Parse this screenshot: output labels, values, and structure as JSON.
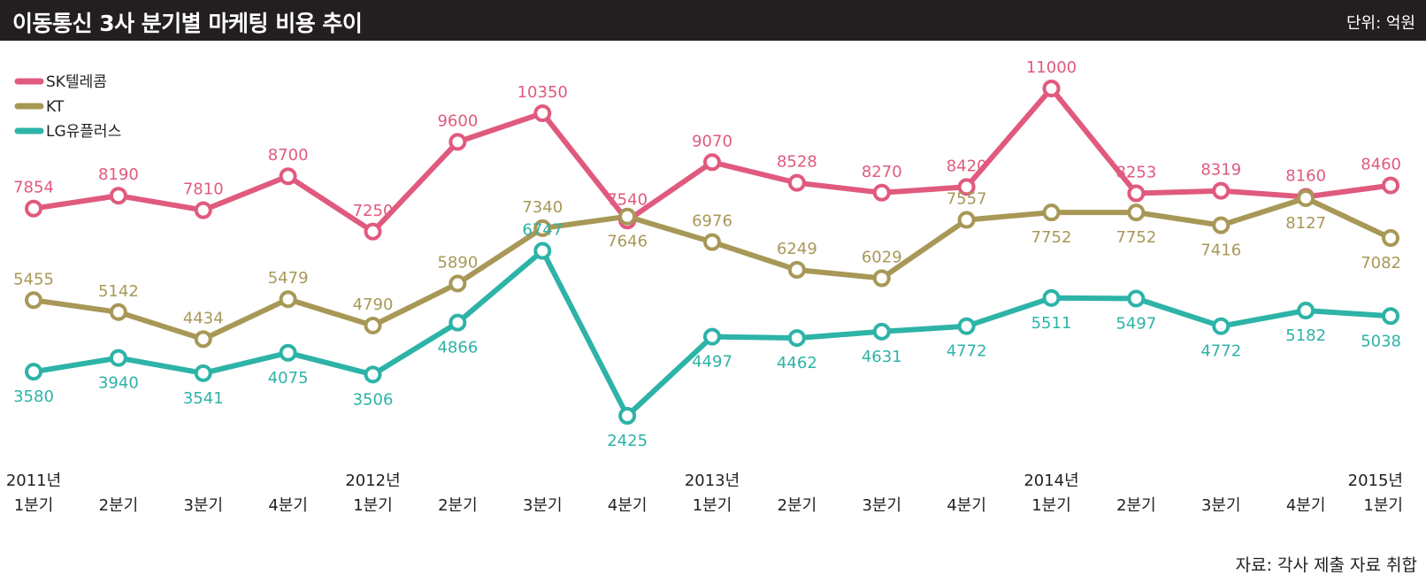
{
  "header": {
    "title": "이동통신 3사 분기별 마케팅 비용 추이",
    "unit": "단위: 억원"
  },
  "source": "자료: 각사 제출 자료 취합",
  "chart_data": {
    "type": "line",
    "title": "이동통신 3사 분기별 마케팅 비용 추이",
    "ylabel": "",
    "xlabel": "",
    "ylim": [
      1500,
      11500
    ],
    "grid": false,
    "legend_position": "top-left",
    "categories": [
      [
        "2011년",
        "1분기"
      ],
      [
        "",
        "2분기"
      ],
      [
        "",
        "3분기"
      ],
      [
        "",
        "4분기"
      ],
      [
        "2012년",
        "1분기"
      ],
      [
        "",
        "2분기"
      ],
      [
        "",
        "3분기"
      ],
      [
        "",
        "4분기"
      ],
      [
        "2013년",
        "1분기"
      ],
      [
        "",
        "2분기"
      ],
      [
        "",
        "3분기"
      ],
      [
        "",
        "4분기"
      ],
      [
        "2014년",
        "1분기"
      ],
      [
        "",
        "2분기"
      ],
      [
        "",
        "3분기"
      ],
      [
        "",
        "4분기"
      ],
      [
        "2015년",
        "1분기"
      ]
    ],
    "series": [
      {
        "name": "SK텔레콤",
        "color": "#e05a7e",
        "values": [
          7854,
          8190,
          7810,
          8700,
          7250,
          9600,
          10350,
          7540,
          9070,
          8528,
          8270,
          8420,
          11000,
          8253,
          8319,
          8160,
          8460
        ]
      },
      {
        "name": "KT",
        "color": "#a89857",
        "values": [
          5455,
          5142,
          4434,
          5479,
          4790,
          5890,
          7340,
          7646,
          6976,
          6249,
          6029,
          7557,
          7752,
          7752,
          7416,
          8127,
          7082
        ]
      },
      {
        "name": "LG유플러스",
        "color": "#2db3a7",
        "values": [
          3580,
          3940,
          3541,
          4075,
          3506,
          4866,
          6747,
          2425,
          4497,
          4462,
          4631,
          4772,
          5511,
          5497,
          4772,
          5182,
          5038
        ]
      }
    ]
  }
}
